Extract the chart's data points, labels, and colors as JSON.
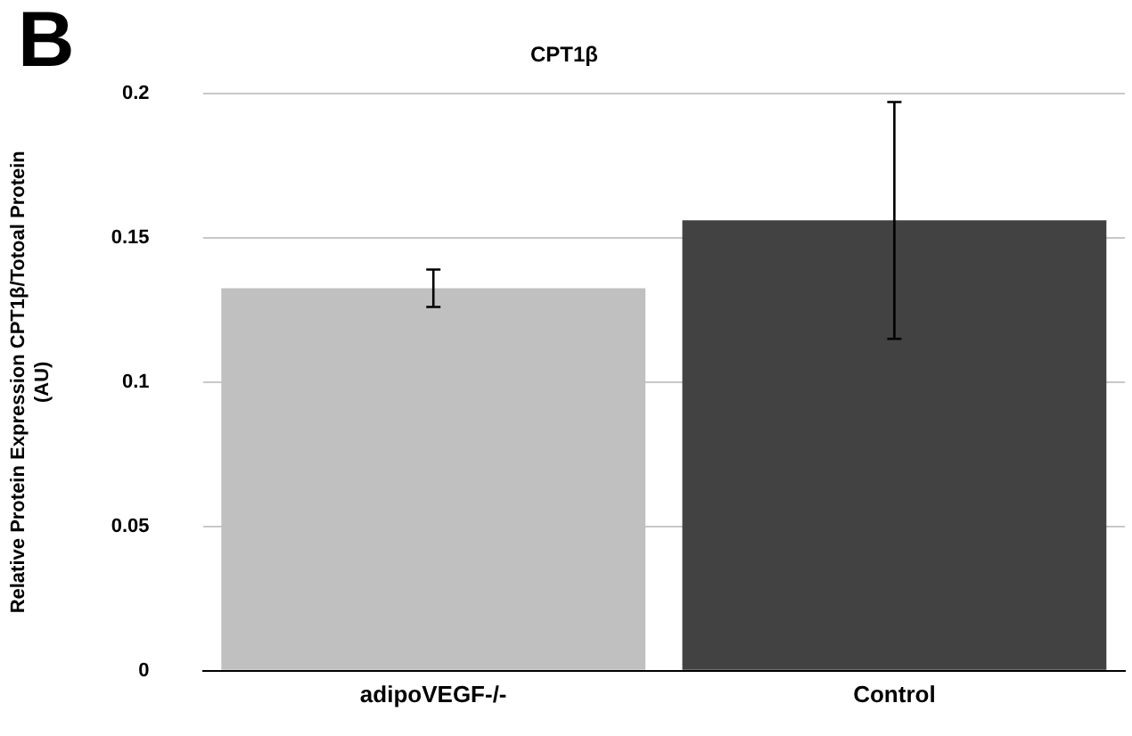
{
  "chart_data": {
    "type": "bar",
    "title": "CPT1β",
    "ylabel": "Relative Protein Expression CPT1β/Totoal Protein\n(AU)",
    "annotations": [
      "B"
    ],
    "categories": [
      "adipoVEGF-/-",
      "Control"
    ],
    "values": [
      0.1325,
      0.156
    ],
    "colors": [
      "#c0c0c0",
      "#424242"
    ],
    "errors": [
      0.0065,
      0.041
    ],
    "ylim": [
      0,
      0.2
    ],
    "yticks": [
      0,
      0.05,
      0.1,
      0.15,
      0.2
    ],
    "grid": "y",
    "legend": false
  }
}
